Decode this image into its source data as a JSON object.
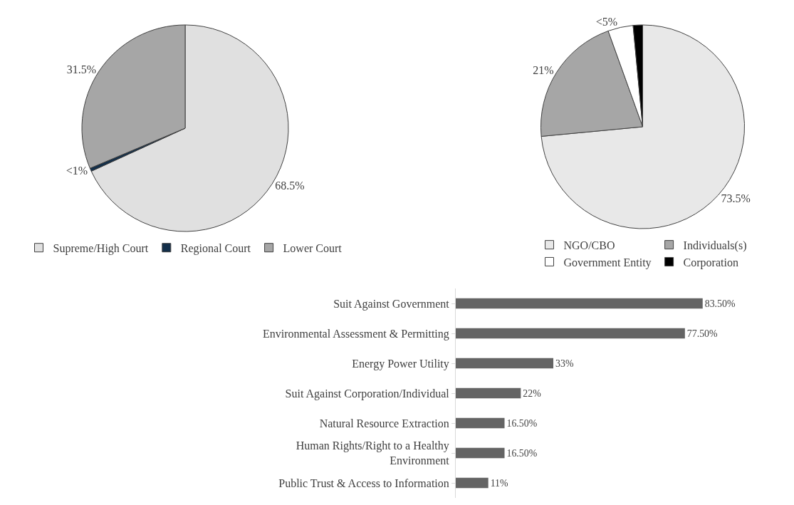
{
  "chart_data": [
    {
      "type": "pie",
      "categories": [
        "Supreme/High Court",
        "Regional Court",
        "Lower Court"
      ],
      "values": [
        68.5,
        0.5,
        31.5
      ],
      "colors": [
        "#e0e0e0",
        "#132f4a",
        "#a6a6a6"
      ],
      "value_labels": [
        "68.5%",
        "<1%",
        "31.5%"
      ],
      "legend": "bottom"
    },
    {
      "type": "pie",
      "categories": [
        "NGO/CBO",
        "Individuals(s)",
        "Government Entity",
        "Corporation"
      ],
      "values": [
        73.5,
        21,
        4,
        1.5
      ],
      "colors": [
        "#e8e8e8",
        "#a6a6a6",
        "#ffffff",
        "#000000"
      ],
      "value_labels": [
        "73.5%",
        "21%",
        "<5%",
        null
      ],
      "legend": "bottom"
    },
    {
      "type": "bar",
      "orientation": "horizontal",
      "categories": [
        "Suit Against Government",
        "Environmental Assessment & Permitting",
        "Energy Power Utility",
        "Suit Against Corporation/Individual",
        "Natural Resource Extraction",
        "Human Rights/Right to a Healthy Environment",
        "Public Trust & Access to Information"
      ],
      "values": [
        83.5,
        77.5,
        33,
        22,
        16.5,
        16.5,
        11
      ],
      "color": "#646464",
      "value_labels": [
        "83.50%",
        "77.50%",
        "33%",
        "22%",
        "16.50%",
        "16.50%",
        "11%"
      ]
    }
  ]
}
